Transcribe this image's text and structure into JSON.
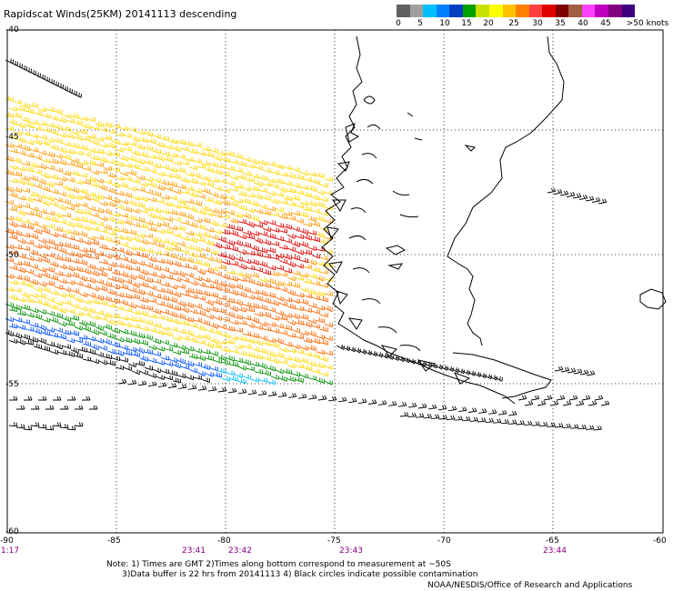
{
  "title": "Rapidscat Winds(25KM) 20141113 descending",
  "colorbar": {
    "colors": [
      "#606060",
      "#a0a0a0",
      "#00bfff",
      "#0080ff",
      "#0040c0",
      "#00a000",
      "#c8e000",
      "#ffff00",
      "#ffc000",
      "#ff8000",
      "#ff4040",
      "#e00000",
      "#800000",
      "#a06040",
      "#ff40ff",
      "#c000c0",
      "#800080",
      "#400080"
    ],
    "labels": [
      "0",
      "5",
      "10",
      "15",
      "20",
      "25",
      "30",
      "35",
      "40",
      "45",
      ">50 knots"
    ]
  },
  "lat_labels": [
    "-40",
    "-45",
    "-50",
    "-55",
    "-60"
  ],
  "lon_labels": [
    "-90",
    "-85",
    "-80",
    "-75",
    "-70",
    "-65",
    "-60"
  ],
  "time_labels": [
    "1:17",
    "23:41",
    "23:42",
    "23:43",
    "23:44"
  ],
  "notes": [
    "Note: 1) Times are GMT 2)Times along bottom correspond to measurement at ~50S",
    "      3)Data buffer is 22 hrs from 20141113 4) Black circles indicate possible contamination"
  ],
  "credit": "NOAA/NESDIS/Office of Research and Applications",
  "wind_colors": {
    "black": "#000000",
    "blue": "#0050ff",
    "cyan": "#00bfff",
    "green": "#009000",
    "yellow": "#ffd700",
    "orange": "#ff9900",
    "dark_orange": "#ff6600",
    "red": "#e00000"
  }
}
